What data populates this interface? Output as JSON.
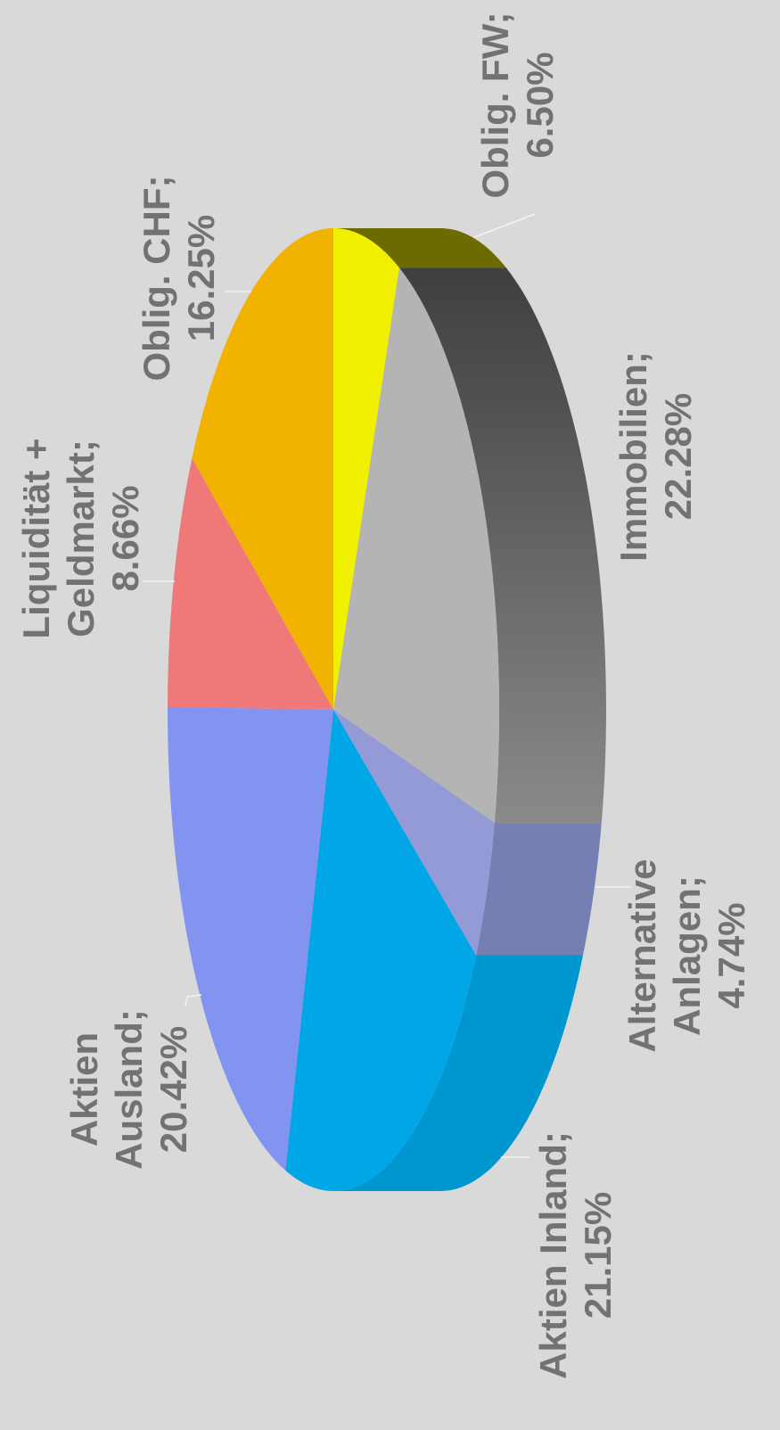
{
  "chart_data": {
    "type": "pie",
    "title": "",
    "orientation": "rotated-90-ccw",
    "style": "3d-tilted",
    "slices": [
      {
        "name": "Obligationen FW",
        "label_lines": [
          "Oblig. FW;",
          "6.50%"
        ],
        "value": 6.5,
        "color": "#f0f000",
        "side_color": "#6b6b00"
      },
      {
        "name": "Immobilien",
        "label_lines": [
          "Immobilien;",
          "22.28%"
        ],
        "value": 22.28,
        "color": "#b4b4b4",
        "side_color": "#5e5e5e"
      },
      {
        "name": "Alternative Anlagen",
        "label_lines": [
          "Alternative",
          "Anlagen;",
          "4.74%"
        ],
        "value": 4.74,
        "color": "#939ad6",
        "side_color": "#767fb3"
      },
      {
        "name": "Aktien Inland",
        "label_lines": [
          "Aktien Inland;",
          "21.15%"
        ],
        "value": 21.15,
        "color": "#00a6e6",
        "side_color": "#0097d0"
      },
      {
        "name": "Aktien Ausland",
        "label_lines": [
          "Aktien",
          "Ausland;",
          "20.42%"
        ],
        "value": 20.42,
        "color": "#8293f0",
        "side_color": "#6f7fd6"
      },
      {
        "name": "Liquidität + Geldmarkt",
        "label_lines": [
          "Liquidität +",
          "Geldmarkt;",
          "8.66%"
        ],
        "value": 8.66,
        "color": "#ef7878",
        "side_color": "#c86060"
      },
      {
        "name": "Obligationen CHF",
        "label_lines": [
          "Oblig. CHF;",
          "16.25%"
        ],
        "value": 16.25,
        "color": "#f2b200",
        "side_color": "#c99400"
      }
    ],
    "legend": "none",
    "data_labels": "outside, category and percent"
  }
}
